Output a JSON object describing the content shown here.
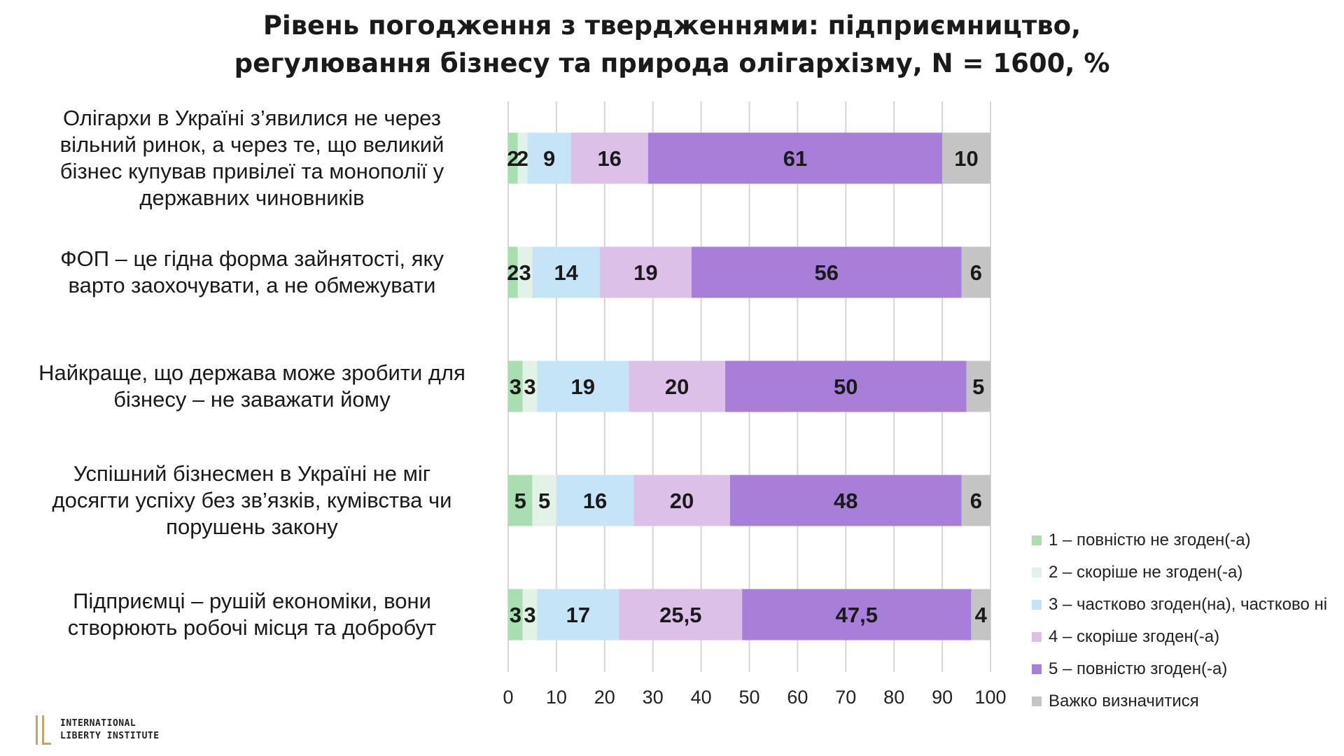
{
  "title_line1": "Рівень погодження з твердженнями: підприємництво,",
  "title_line2": "регулювання бізнесу та природа олігархізму, N = 1600, %",
  "logo": {
    "line1": "INTERNATIONAL",
    "line2": "LIBERTY INSTITUTE"
  },
  "chart_data": {
    "type": "bar",
    "orientation": "horizontal",
    "stacked": true,
    "categories": [
      "Олігархи в Україні з’явилися не через вільний ринок, а через те, що великий бізнес купував привілеї та монополії у державних чиновників",
      "ФОП – це гідна форма зайнятості, яку варто заохочувати, а не обмежувати",
      "Найкраще, що держава може зробити для бізнесу – не заважати йому",
      "Успішний бізнесмен в Україні не міг досягти успіху без зв’язків, кумівства чи порушень закону",
      "Підприємці – рушій економіки, вони створюють робочі місця та добробут"
    ],
    "category_lines": [
      [
        "Олігархи в Україні з’явилися не через",
        "вільний ринок, а через те, що великий",
        "бізнес купував привілеї та монополії у",
        "державних чиновників"
      ],
      [
        "ФОП – це гідна форма зайнятості, яку",
        "варто заохочувати, а не обмежувати"
      ],
      [
        "Найкраще, що держава може зробити для",
        "бізнесу – не заважати йому"
      ],
      [
        "Успішний бізнесмен в Україні не міг",
        "досягти успіху без зв’язків, кумівства чи",
        "порушень закону"
      ],
      [
        "Підприємці – рушій економіки, вони",
        "створюють робочі місця та добробут"
      ]
    ],
    "series": [
      {
        "name": "1 – повністю не згоден(-а)",
        "color": "#a9dfb0",
        "values": [
          2,
          2,
          3,
          5,
          3
        ],
        "labels": [
          "2",
          "2",
          "3",
          "5",
          "3"
        ]
      },
      {
        "name": "2 – скоріше не згоден(-а)",
        "color": "#e3f2e6",
        "values": [
          2,
          3,
          3,
          5,
          3
        ],
        "labels": [
          "2",
          "3",
          "3",
          "5",
          "3"
        ]
      },
      {
        "name": "3 – частково згоден(на), частково ні",
        "color": "#c5e4f7",
        "values": [
          9,
          14,
          19,
          16,
          17
        ],
        "labels": [
          "9",
          "14",
          "19",
          "16",
          "17"
        ]
      },
      {
        "name": "4 – скоріше згоден(-а)",
        "color": "#dcc0e8",
        "values": [
          16,
          19,
          20,
          20,
          25.5
        ],
        "labels": [
          "16",
          "19",
          "20",
          "20",
          "25,5"
        ]
      },
      {
        "name": "5 – повністю згоден(-а)",
        "color": "#a77ed8",
        "values": [
          61,
          56,
          50,
          48,
          47.5
        ],
        "labels": [
          "61",
          "56",
          "50",
          "48",
          "47,5"
        ]
      },
      {
        "name": "Важко визначитися",
        "color": "#c4c4c4",
        "values": [
          10,
          6,
          5,
          6,
          4
        ],
        "labels": [
          "10",
          "6",
          "5",
          "6",
          "4"
        ]
      }
    ],
    "xlim": [
      0,
      100
    ],
    "xticks": [
      "0",
      "10",
      "20",
      "30",
      "40",
      "50",
      "60",
      "70",
      "80",
      "90",
      "100"
    ],
    "grid": true,
    "legend_position": "bottom-right"
  }
}
